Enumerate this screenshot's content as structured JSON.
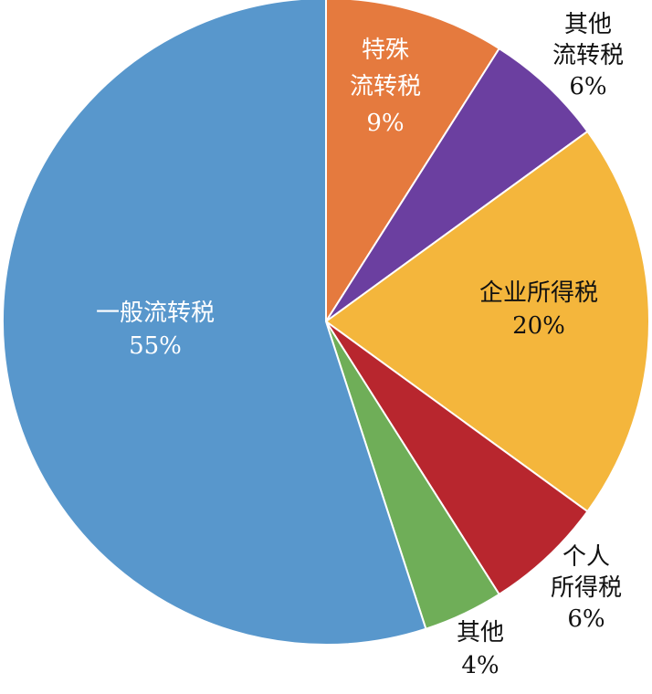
{
  "chart_data": {
    "type": "pie",
    "title": "",
    "slices": [
      {
        "name": "特殊流转税",
        "label_lines": [
          "特殊",
          "流转税",
          "9%"
        ],
        "value": 9,
        "color": "#E57A3E",
        "label_placement": "inside"
      },
      {
        "name": "其他流转税",
        "label_lines": [
          "其他",
          "流转税",
          "6%"
        ],
        "value": 6,
        "color": "#6B3FA0",
        "label_placement": "outside"
      },
      {
        "name": "企业所得税",
        "label_lines": [
          "企业所得税",
          "20%"
        ],
        "value": 20,
        "color": "#F4B63C",
        "label_placement": "inside-dark"
      },
      {
        "name": "个人所得税",
        "label_lines": [
          "个人",
          "所得税",
          "6%"
        ],
        "value": 6,
        "color": "#B8262E",
        "label_placement": "outside"
      },
      {
        "name": "其他",
        "label_lines": [
          "其他",
          "4%"
        ],
        "value": 4,
        "color": "#6FAE58",
        "label_placement": "outside"
      },
      {
        "name": "一般流转税",
        "label_lines": [
          "一般流转税",
          "55%"
        ],
        "value": 55,
        "color": "#5897CC",
        "label_placement": "inside"
      }
    ],
    "start_direction": "top",
    "direction": "clockwise"
  }
}
